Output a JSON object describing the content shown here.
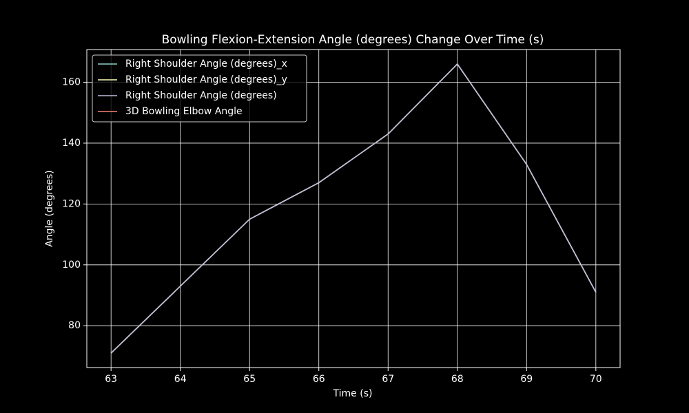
{
  "chart_data": {
    "type": "line",
    "title": "Bowling Flexion-Extension Angle (degrees) Change Over Time (s)",
    "x_label": "Time (s)",
    "y_label": "Angle (degrees)",
    "x": [
      63,
      64,
      65,
      66,
      67,
      68,
      69,
      70
    ],
    "series": [
      {
        "name": "Right Shoulder Angle (degrees)_x",
        "color": "#8dd3c7",
        "values": [
          71,
          93,
          115,
          127,
          143,
          166,
          133,
          91
        ]
      },
      {
        "name": "Right Shoulder Angle (degrees)_y",
        "color": "#feffb3",
        "values": [
          71,
          93,
          115,
          127,
          143,
          166,
          133,
          91
        ]
      },
      {
        "name": "Right Shoulder Angle (degrees)",
        "color": "#bfbbd9",
        "values": [
          71,
          93,
          115,
          127,
          143,
          166,
          133,
          91
        ]
      },
      {
        "name": "3D Bowling Elbow Angle",
        "color": "#fa8174",
        "values": [
          null,
          null,
          null,
          null,
          null,
          null,
          null,
          null
        ]
      }
    ],
    "xlim": [
      62.65,
      70.35
    ],
    "xticks": [
      63,
      64,
      65,
      66,
      67,
      68,
      69,
      70
    ],
    "ylim": [
      66.25,
      170.75
    ],
    "yticks": [
      80,
      100,
      120,
      140,
      160
    ],
    "grid": true,
    "legend": "upper-left"
  }
}
